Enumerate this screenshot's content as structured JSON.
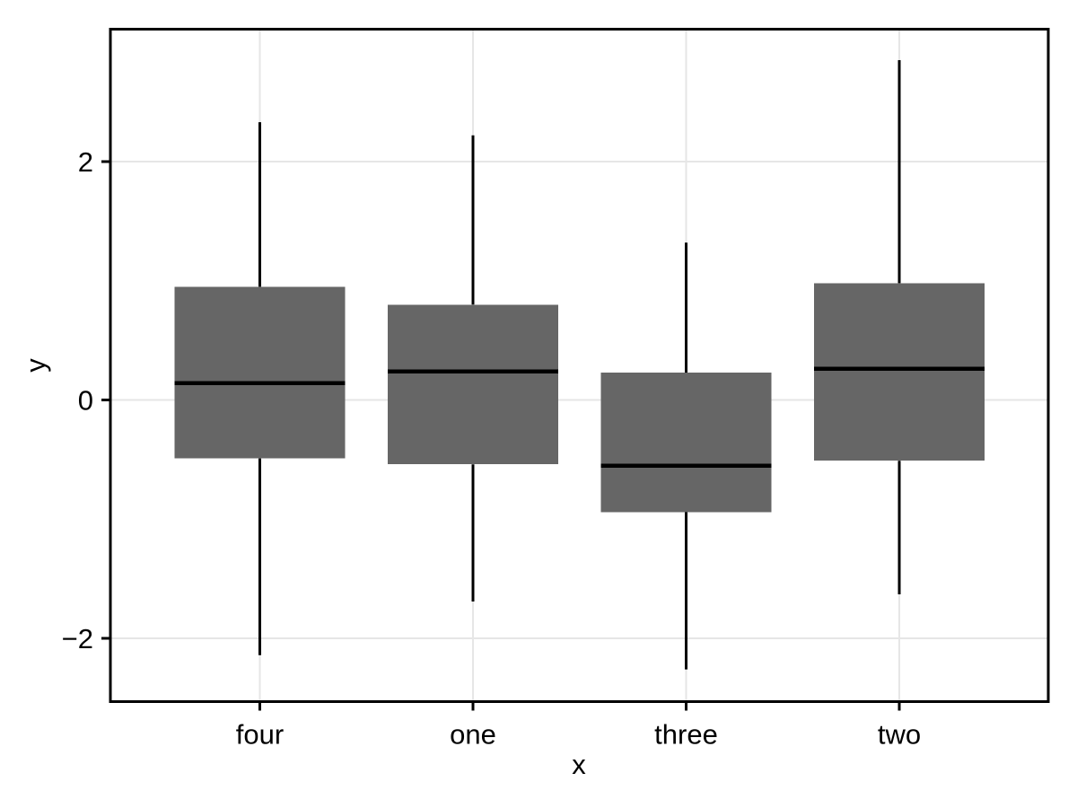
{
  "chart_data": {
    "type": "boxplot",
    "title": "",
    "xlabel": "x",
    "ylabel": "y",
    "categories": [
      "four",
      "one",
      "three",
      "two"
    ],
    "series": [
      {
        "name": "four",
        "whisker_low": -2.14,
        "q1": -0.49,
        "median": 0.14,
        "q3": 0.95,
        "whisker_high": 2.33
      },
      {
        "name": "one",
        "whisker_low": -1.69,
        "q1": -0.54,
        "median": 0.24,
        "q3": 0.8,
        "whisker_high": 2.22
      },
      {
        "name": "three",
        "whisker_low": -2.26,
        "q1": -0.94,
        "median": -0.55,
        "q3": 0.23,
        "whisker_high": 1.32
      },
      {
        "name": "two",
        "whisker_low": -1.63,
        "q1": -0.51,
        "median": 0.26,
        "q3": 0.98,
        "whisker_high": 2.85
      }
    ],
    "ylim": [
      -2.53,
      3.11
    ],
    "yticks": [
      2,
      0,
      -2
    ],
    "ytick_labels": [
      "2",
      "0",
      "−2"
    ],
    "outliers": [],
    "grid": "horizontal major gridlines at yticks and vertical gridline at each category center; no minor gridlines",
    "legend": "none",
    "colors": {
      "box_fill": "#666666",
      "median_line": "#000000",
      "whisker_line": "#000000",
      "gridline": "#e6e6e6",
      "panel_border": "#000000",
      "tick_mark": "#000000",
      "background": "#ffffff"
    }
  }
}
